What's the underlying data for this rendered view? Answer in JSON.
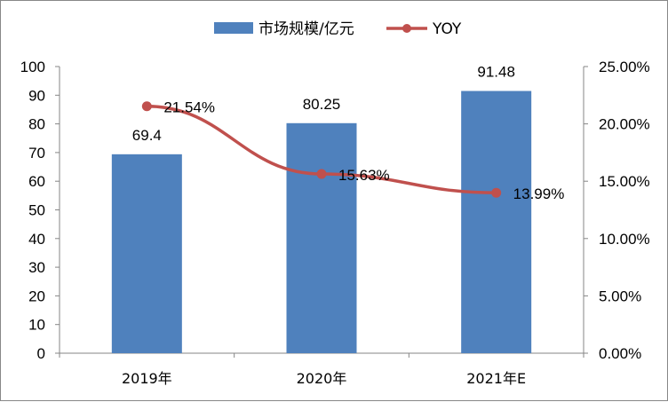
{
  "chart_data": {
    "type": "bar",
    "categories": [
      "2019年",
      "2020年",
      "2021年E"
    ],
    "series": [
      {
        "name": "市场规模/亿元",
        "type": "bar",
        "axis": "left",
        "color": "#4F81BD",
        "values": [
          69.4,
          80.25,
          91.48
        ],
        "labels": [
          "69.4",
          "80.25",
          "91.48"
        ]
      },
      {
        "name": "YOY",
        "type": "line",
        "axis": "right",
        "color": "#C0504D",
        "values": [
          21.54,
          15.63,
          13.99
        ],
        "labels": [
          "21.54%",
          "15.63%",
          "13.99%"
        ]
      }
    ],
    "y_left": {
      "min": 0,
      "max": 100,
      "step": 10,
      "ticks": [
        "0",
        "10",
        "20",
        "30",
        "40",
        "50",
        "60",
        "70",
        "80",
        "90",
        "100"
      ]
    },
    "y_right": {
      "min": 0,
      "max": 25,
      "step": 5,
      "ticks": [
        "0.00%",
        "5.00%",
        "10.00%",
        "15.00%",
        "20.00%",
        "25.00%"
      ]
    },
    "legend_position": "top-center",
    "grid": false
  }
}
